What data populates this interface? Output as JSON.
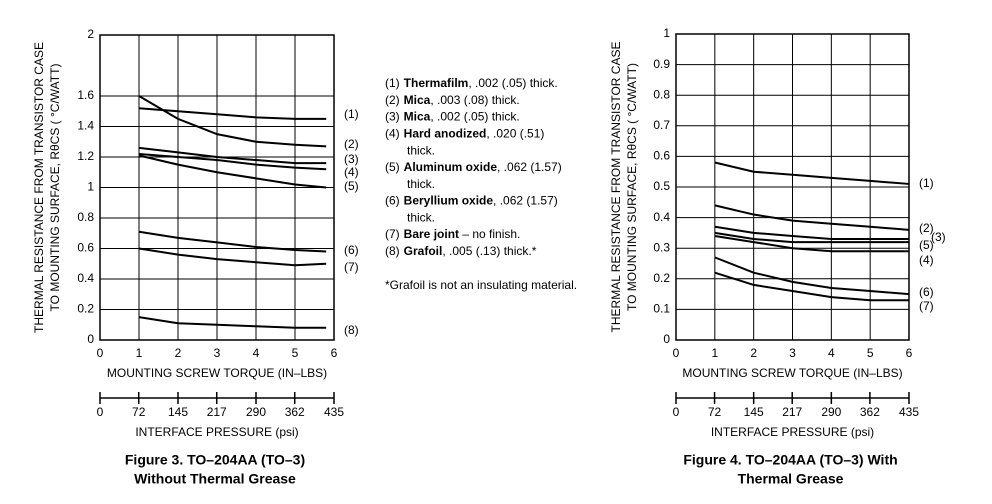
{
  "chart_data": [
    {
      "type": "line",
      "xlabel": "MOUNTING SCREW TORQUE (IN–LBS)",
      "ylabel": [
        "THERMAL RESISTANCE FROM TRANSISTOR CASE",
        "TO MOUNTING SURFACE, RθCS ( °C/WATT)"
      ],
      "x2label": "INTERFACE PRESSURE (psi)",
      "caption": [
        "Figure 3. TO–204AA (TO–3)",
        "Without Thermal Grease"
      ],
      "xlim": [
        0,
        6
      ],
      "xticks": [
        0,
        1,
        2,
        3,
        4,
        5,
        6
      ],
      "x2lim": [
        0,
        435
      ],
      "x2ticks": [
        0,
        72,
        145,
        217,
        290,
        362,
        435
      ],
      "ylim": [
        0,
        2
      ],
      "yticks": [
        0,
        0.2,
        0.4,
        0.6,
        0.8,
        1,
        1.2,
        1.4,
        1.6,
        2
      ],
      "grid": true,
      "x": [
        1,
        2,
        3,
        4,
        5,
        5.8
      ],
      "series": [
        {
          "name": "(1)",
          "color": "#000000",
          "values": [
            1.52,
            1.5,
            1.48,
            1.46,
            1.45,
            1.45
          ]
        },
        {
          "name": "(2)",
          "color": "#000000",
          "values": [
            1.6,
            1.45,
            1.35,
            1.3,
            1.28,
            1.27
          ]
        },
        {
          "name": "(3)",
          "color": "#000000",
          "values": [
            1.26,
            1.23,
            1.2,
            1.18,
            1.16,
            1.16
          ]
        },
        {
          "name": "(4)",
          "color": "#000000",
          "values": [
            1.22,
            1.2,
            1.18,
            1.15,
            1.13,
            1.12
          ]
        },
        {
          "name": "(5)",
          "color": "#000000",
          "values": [
            1.21,
            1.15,
            1.1,
            1.06,
            1.02,
            1.0
          ]
        },
        {
          "name": "(6)",
          "color": "#000000",
          "values": [
            0.71,
            0.67,
            0.64,
            0.61,
            0.59,
            0.58
          ]
        },
        {
          "name": "(7)",
          "color": "#000000",
          "values": [
            0.6,
            0.56,
            0.53,
            0.51,
            0.49,
            0.5
          ]
        },
        {
          "name": "(8)",
          "color": "#000000",
          "values": [
            0.15,
            0.11,
            0.1,
            0.09,
            0.08,
            0.08
          ]
        }
      ]
    },
    {
      "type": "line",
      "xlabel": "MOUNTING SCREW TORQUE (IN–LBS)",
      "ylabel": [
        "THERMAL RESISTANCE FROM TRANSISTOR CASE",
        "TO MOUNTING SURFACE, RθCS ( °C/WATT)"
      ],
      "x2label": "INTERFACE PRESSURE (psi)",
      "caption": [
        "Figure 4. TO–204AA (TO–3) With",
        "Thermal Grease"
      ],
      "xlim": [
        0,
        6
      ],
      "xticks": [
        0,
        1,
        2,
        3,
        4,
        5,
        6
      ],
      "x2lim": [
        0,
        435
      ],
      "x2ticks": [
        0,
        72,
        145,
        217,
        290,
        362,
        435
      ],
      "ylim": [
        0,
        1
      ],
      "yticks": [
        0,
        0.1,
        0.2,
        0.3,
        0.4,
        0.5,
        0.6,
        0.7,
        0.8,
        0.9,
        1
      ],
      "grid": true,
      "x": [
        1,
        2,
        3,
        4,
        5,
        6
      ],
      "series": [
        {
          "name": "(1)",
          "color": "#000000",
          "values": [
            0.58,
            0.55,
            0.54,
            0.53,
            0.52,
            0.51
          ]
        },
        {
          "name": "(2)",
          "color": "#000000",
          "values": [
            0.44,
            0.41,
            0.39,
            0.38,
            0.37,
            0.36
          ]
        },
        {
          "name": "(3)",
          "color": "#000000",
          "values": [
            0.37,
            0.35,
            0.34,
            0.33,
            0.33,
            0.33
          ]
        },
        {
          "name": "(5)",
          "color": "#000000",
          "values": [
            0.35,
            0.33,
            0.32,
            0.32,
            0.32,
            0.32
          ]
        },
        {
          "name": "(4)",
          "color": "#000000",
          "values": [
            0.34,
            0.32,
            0.3,
            0.29,
            0.29,
            0.29
          ]
        },
        {
          "name": "(6)",
          "color": "#000000",
          "values": [
            0.27,
            0.22,
            0.19,
            0.17,
            0.16,
            0.15
          ]
        },
        {
          "name": "(7)",
          "color": "#000000",
          "values": [
            0.22,
            0.18,
            0.16,
            0.14,
            0.13,
            0.13
          ]
        }
      ]
    }
  ],
  "legend": [
    {
      "label": "(1)",
      "name": "Thermafilm",
      "detail": ", .002 (.05) thick."
    },
    {
      "label": "(2)",
      "name": "Mica",
      "detail": ", .003 (.08) thick."
    },
    {
      "label": "(3)",
      "name": "Mica",
      "detail": ", .002 (.05) thick."
    },
    {
      "label": "(4)",
      "name": "Hard anodized",
      "detail": ", .020 (.51)",
      "cont": "thick."
    },
    {
      "label": "(5)",
      "name": "Aluminum oxide",
      "detail": ", .062 (1.57)",
      "cont": "thick."
    },
    {
      "label": "(6)",
      "name": "Beryllium oxide",
      "detail": ", .062 (1.57)",
      "cont": "thick."
    },
    {
      "label": "(7)",
      "name": "Bare joint",
      "detail": " – no finish."
    },
    {
      "label": "(8)",
      "name": "Grafoil",
      "detail": ", .005 (.13) thick.*"
    }
  ],
  "footnote": "*Grafoil is not an insulating material."
}
